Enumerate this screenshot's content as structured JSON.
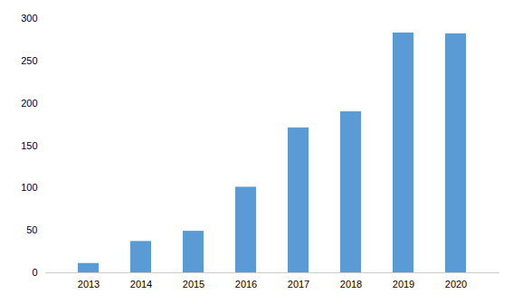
{
  "chart_data": {
    "type": "bar",
    "categories": [
      "2013",
      "2014",
      "2015",
      "2016",
      "2017",
      "2018",
      "2019",
      "2020"
    ],
    "values": [
      11,
      37,
      49,
      101,
      171,
      190,
      283,
      282
    ],
    "color": "#5b9bd5",
    "ylim": [
      0,
      300
    ],
    "yticks": [
      0,
      50,
      100,
      150,
      200,
      250,
      300
    ],
    "grid": false
  }
}
